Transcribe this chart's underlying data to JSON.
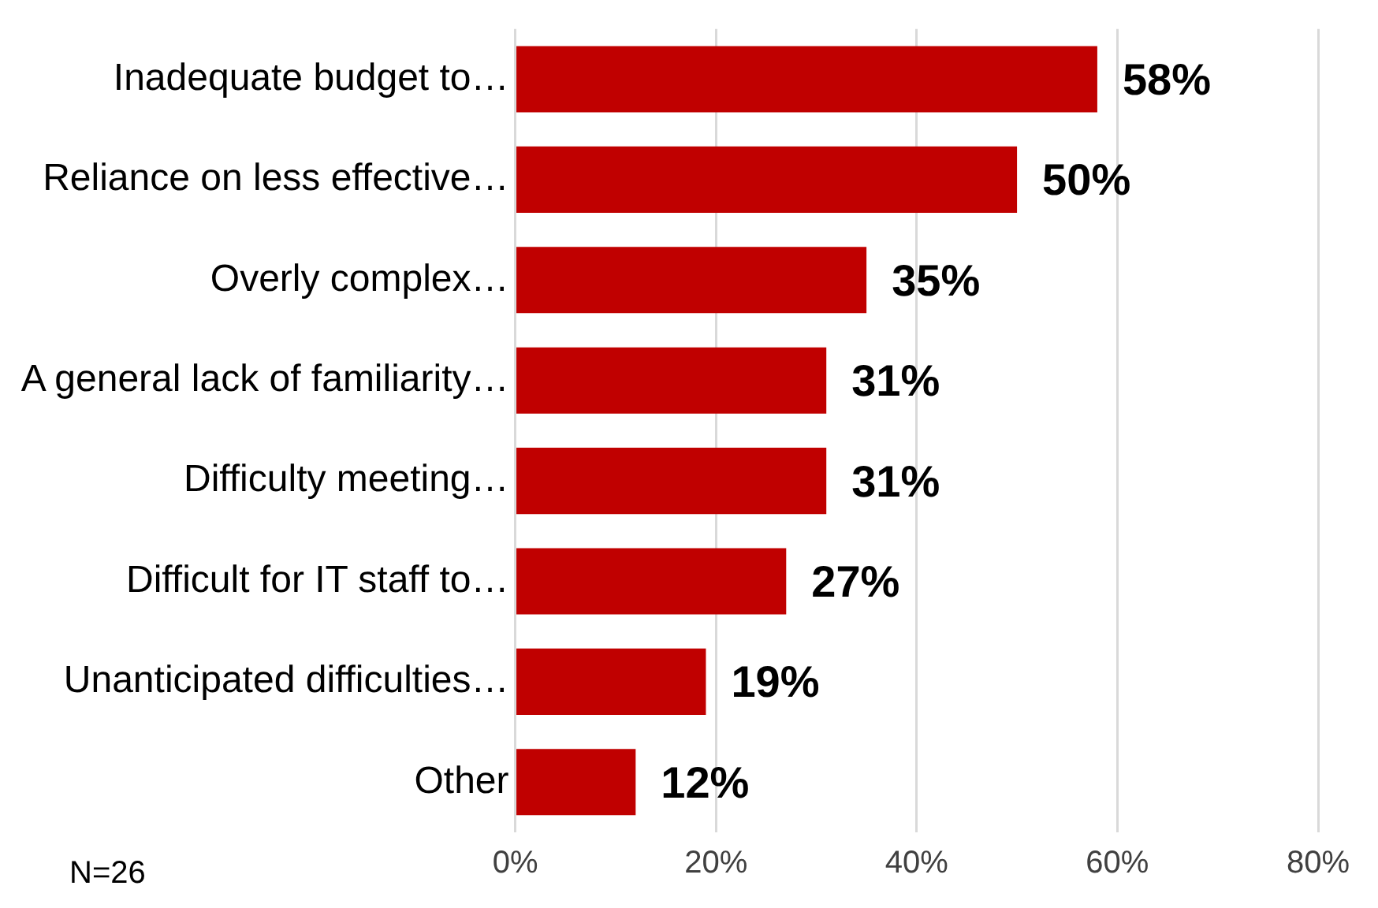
{
  "chart_data": {
    "type": "bar",
    "orientation": "horizontal",
    "categories": [
      "Inadequate budget to…",
      "Reliance on less effective…",
      "Overly complex…",
      "A general lack of familiarity…",
      "Difficulty meeting…",
      "Difficult for IT staff to…",
      "Unanticipated difficulties…",
      "Other"
    ],
    "values": [
      58,
      50,
      35,
      31,
      31,
      27,
      19,
      12
    ],
    "color": "#c00000",
    "value_labels": [
      "58%",
      "50%",
      "35%",
      "31%",
      "31%",
      "27%",
      "19%",
      "12%"
    ],
    "xlim": [
      0,
      80
    ],
    "xticks": [
      {
        "value": 0,
        "label": "0%"
      },
      {
        "value": 20,
        "label": "20%"
      },
      {
        "value": 40,
        "label": "40%"
      },
      {
        "value": 60,
        "label": "60%"
      },
      {
        "value": 80,
        "label": "80%"
      }
    ],
    "grid": "x",
    "legend": false,
    "annotations": [
      "N=26"
    ]
  }
}
